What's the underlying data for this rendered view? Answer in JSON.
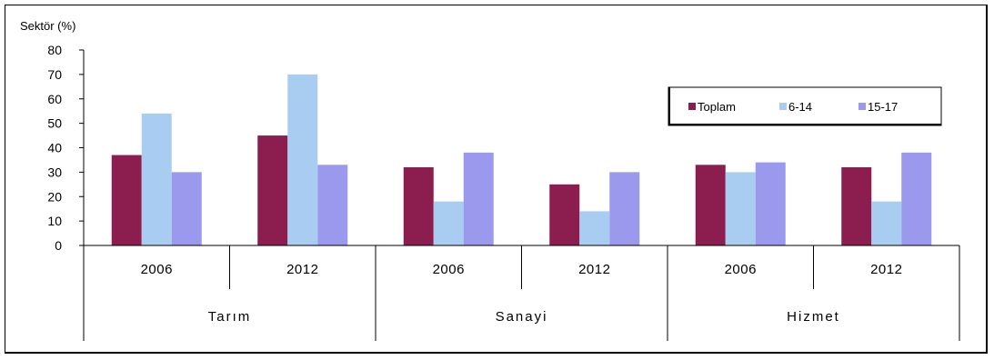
{
  "chart_data": {
    "type": "bar",
    "ylabel": "Sektör (%)",
    "ylim": [
      0,
      80
    ],
    "yticks": [
      0,
      10,
      20,
      30,
      40,
      50,
      60,
      70,
      80
    ],
    "groups": [
      {
        "label": "Tarım",
        "years": [
          "2006",
          "2012"
        ]
      },
      {
        "label": "Sanayi",
        "years": [
          "2006",
          "2012"
        ]
      },
      {
        "label": "Hizmet",
        "years": [
          "2006",
          "2012"
        ]
      }
    ],
    "categories": [
      "2006",
      "2012",
      "2006",
      "2012",
      "2006",
      "2012"
    ],
    "series": [
      {
        "name": "Toplam",
        "color": "#8b1e4e",
        "values": [
          37,
          45,
          32,
          25,
          33,
          32
        ]
      },
      {
        "name": "6-14",
        "color": "#a9cdf0",
        "values": [
          54,
          70,
          18,
          14,
          30,
          18
        ]
      },
      {
        "name": "15-17",
        "color": "#9a99ee",
        "values": [
          30,
          33,
          38,
          30,
          34,
          38
        ]
      }
    ],
    "legend_position": "top-right",
    "grid": false
  }
}
